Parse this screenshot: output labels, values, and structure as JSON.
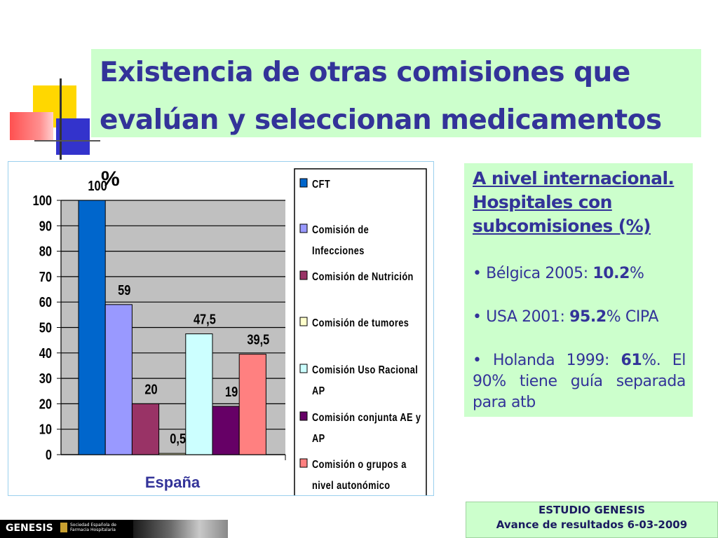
{
  "slide": {
    "title_line1": "Existencia de otras comisiones que",
    "title_line2": "evalúan y seleccionan medicamentos"
  },
  "info": {
    "heading": "A nivel internacional. Hospitales con subcomisiones (%)",
    "items": [
      {
        "bullet": "•",
        "prefix": " Bélgica 2005: ",
        "value": "10.2",
        "suffix": "%"
      },
      {
        "bullet": "•",
        "prefix": " USA 2001: ",
        "value": "95.2",
        "suffix": "% CIPA"
      },
      {
        "bullet": "•",
        "prefix": " Holanda 1999: ",
        "value": "61",
        "suffix": "%. El 90% tiene guía separada para atb"
      }
    ]
  },
  "footer": {
    "line1": "ESTUDIO GENESIS",
    "line2": "Avance de resultados 6-03-2009"
  },
  "branding": {
    "logo": "GENESIS",
    "society": "Sociedad Española de Farmacia Hospitalaria"
  },
  "chart_data": {
    "type": "bar",
    "title": "%",
    "xlabel": "España",
    "ylabel": "",
    "ylim": [
      0,
      100
    ],
    "yticks": [
      0,
      10,
      20,
      30,
      40,
      50,
      60,
      70,
      80,
      90,
      100
    ],
    "grid": true,
    "legend_position": "right",
    "categories": [
      "España"
    ],
    "series": [
      {
        "name": "CFT",
        "values": [
          100
        ],
        "label": "100",
        "color": "#0066cc"
      },
      {
        "name": "Comisión de Infecciones",
        "values": [
          59
        ],
        "label": "59",
        "color": "#9999ff"
      },
      {
        "name": "Comisión de Nutrición",
        "values": [
          20
        ],
        "label": "20",
        "color": "#993366"
      },
      {
        "name": "Comisión de tumores",
        "values": [
          0.5
        ],
        "label": "0,5",
        "color": "#ffffcc"
      },
      {
        "name": "Comisión Uso Racional AP",
        "values": [
          47.5
        ],
        "label": "47,5",
        "color": "#ccffff"
      },
      {
        "name": "Comisión conjunta AE y AP",
        "values": [
          19
        ],
        "label": "19",
        "color": "#660066"
      },
      {
        "name": "Comisión o grupos a nivel autonómico",
        "values": [
          39.5
        ],
        "label": "39,5",
        "color": "#ff8080"
      }
    ],
    "legend_lines": [
      [
        "CFT"
      ],
      [
        "Comisión de",
        "Infecciones"
      ],
      [
        "Comisión de Nutrición"
      ],
      [
        "Comisión de tumores"
      ],
      [
        "Comisión Uso Racional",
        "AP"
      ],
      [
        "Comisión conjunta AE y",
        "AP"
      ],
      [
        "Comisión o grupos a",
        "nivel autonómico"
      ]
    ]
  }
}
